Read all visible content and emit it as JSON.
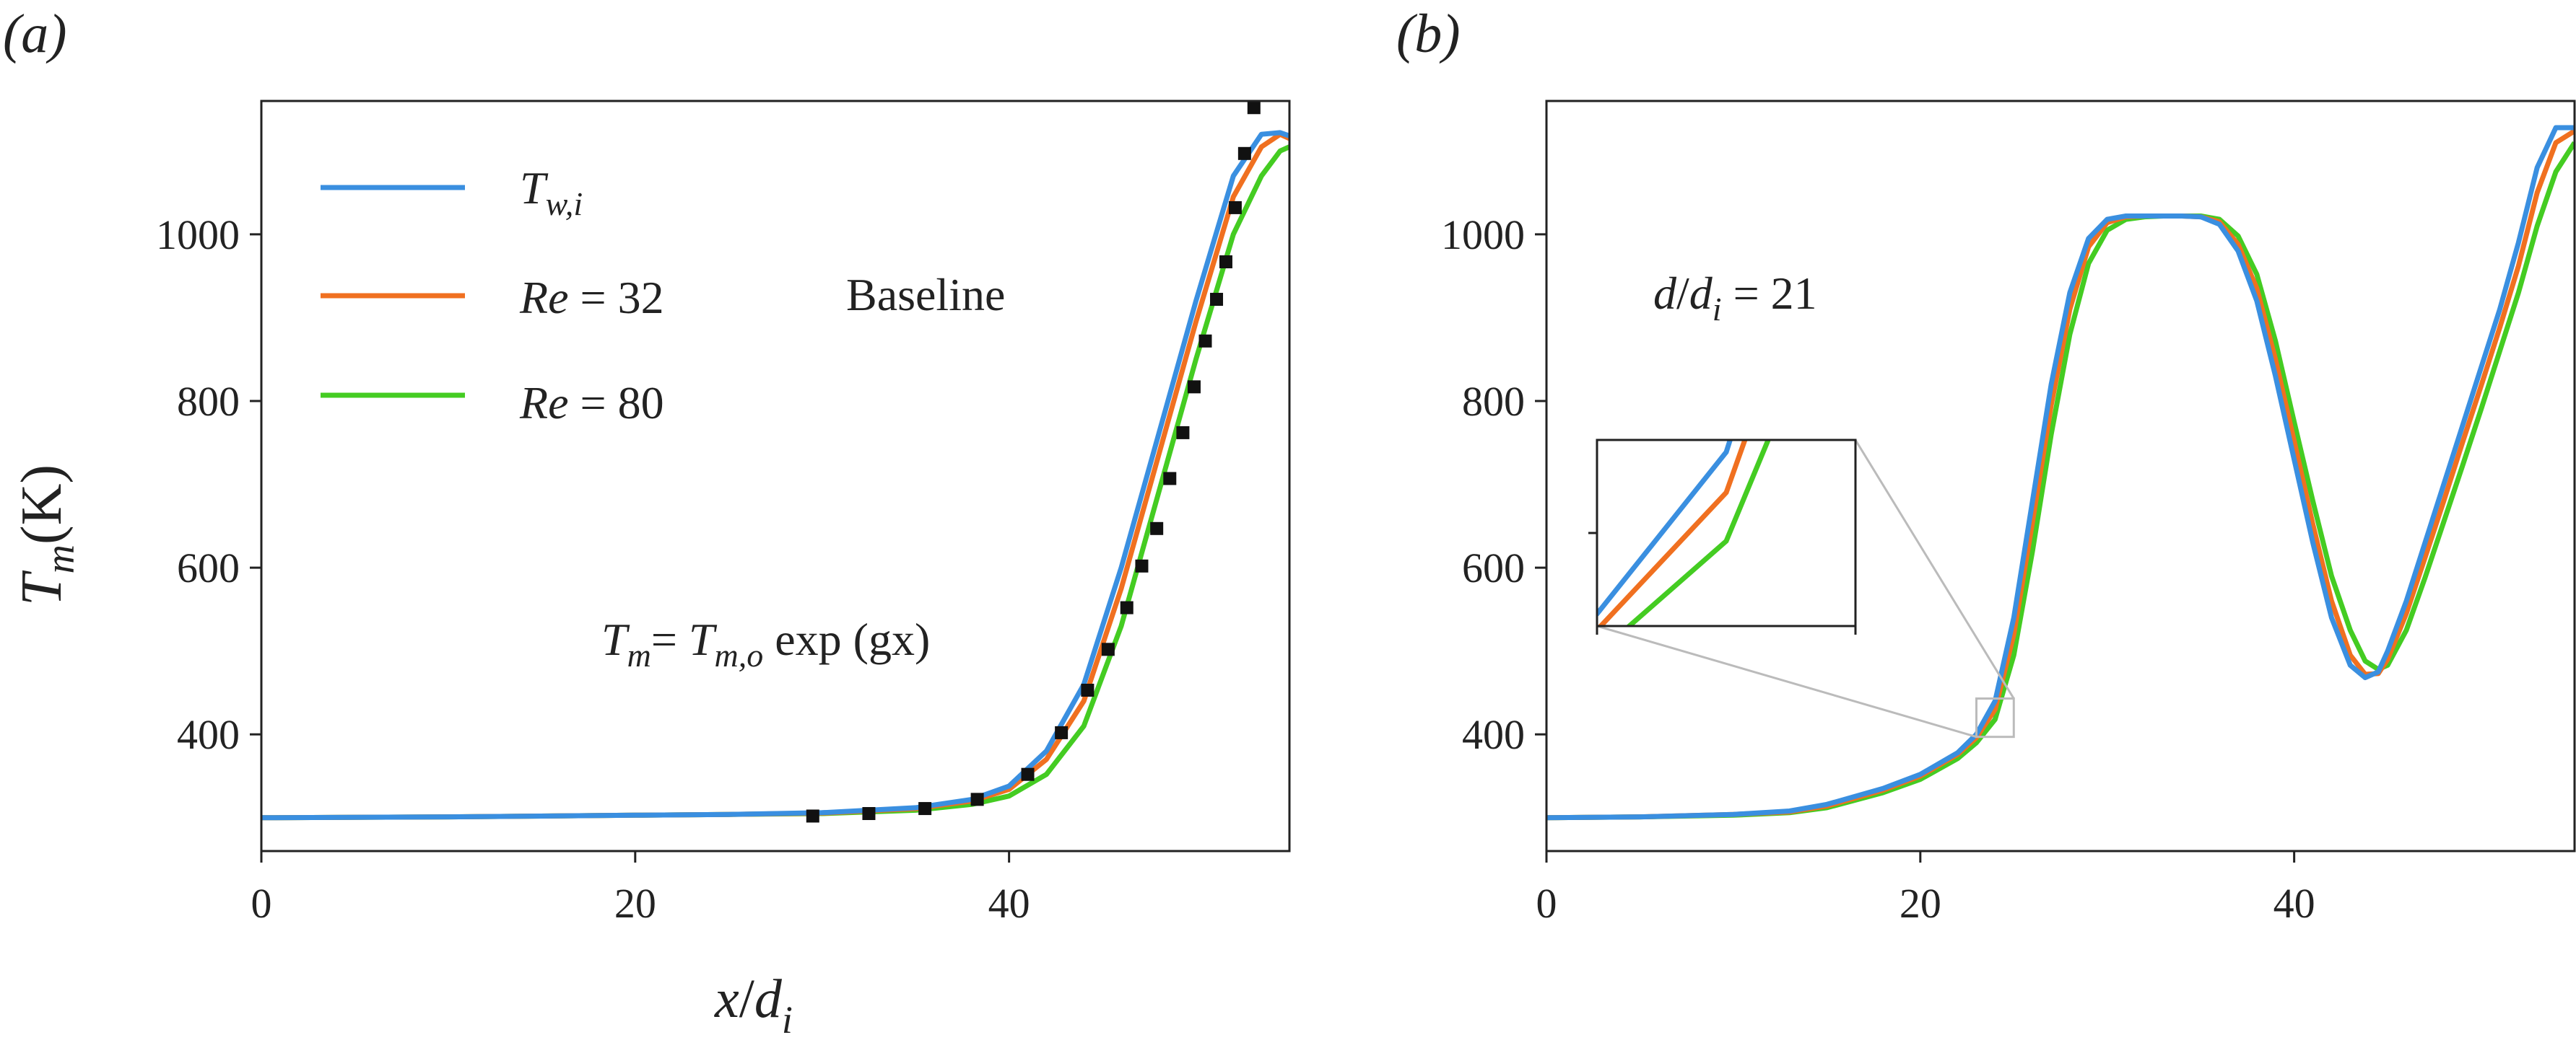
{
  "chart_data": [
    {
      "type": "line",
      "panel_label": "(a)",
      "title": "Baseline",
      "annotation": "T_m = T_m,o exp (gx)",
      "xlabel": "x/d_i",
      "ylabel": "T_m (K)",
      "xlim": [
        0,
        55
      ],
      "ylim": [
        260,
        1160
      ],
      "xticks": [
        0,
        20,
        40
      ],
      "yticks": [
        400,
        600,
        800,
        1000
      ],
      "legend_position": "top-left",
      "series": [
        {
          "name": "T_w,i",
          "color": "#3a8fe0",
          "x": [
            0,
            10,
            20,
            25,
            30,
            35,
            38,
            40,
            42,
            44,
            46,
            48,
            50,
            52,
            53.5,
            54.5,
            55
          ],
          "y": [
            300,
            301,
            303,
            304,
            306,
            312,
            322,
            338,
            380,
            460,
            600,
            760,
            920,
            1070,
            1120,
            1122,
            1118
          ]
        },
        {
          "name": "Re = 32",
          "color": "#f07020",
          "x": [
            0,
            10,
            20,
            25,
            30,
            35,
            38,
            40,
            42,
            44,
            46,
            48,
            50,
            52,
            53.5,
            54.5,
            55
          ],
          "y": [
            300,
            301,
            303,
            304,
            305.5,
            311,
            320,
            334,
            370,
            440,
            575,
            735,
            895,
            1045,
            1105,
            1120,
            1115
          ]
        },
        {
          "name": "Re = 80",
          "color": "#44cc22",
          "x": [
            0,
            10,
            20,
            25,
            30,
            35,
            38,
            40,
            42,
            44,
            46,
            48,
            50,
            52,
            53.5,
            54.5,
            55
          ],
          "y": [
            300,
            301,
            303,
            304,
            305,
            309,
            316,
            326,
            352,
            410,
            530,
            690,
            850,
            1000,
            1070,
            1100,
            1105
          ]
        },
        {
          "name": "T_m = T_m,o exp (gx)",
          "color": "#111111",
          "style": "dotted",
          "x": [
            29.5,
            32.5,
            35.5,
            38.3,
            41,
            42.8,
            44.2,
            45.3,
            46.3,
            47.1,
            47.9,
            48.6,
            49.3,
            49.9,
            50.5,
            51.1,
            51.6,
            52.1,
            52.6,
            53.1
          ],
          "y": [
            302,
            305,
            311,
            322,
            352,
            402,
            453,
            502,
            552,
            602,
            647,
            707,
            762,
            817,
            872,
            922,
            967,
            1032,
            1097,
            1152
          ]
        }
      ]
    },
    {
      "type": "line",
      "panel_label": "(b)",
      "annotation": "d/d_i = 21",
      "xlabel": "",
      "ylabel": "",
      "xlim": [
        0,
        55
      ],
      "ylim": [
        260,
        1160
      ],
      "xticks": [
        0,
        20,
        40
      ],
      "yticks": [
        400,
        600,
        800,
        1000
      ],
      "inset": {
        "x_range": [
          23,
          25
        ],
        "y_range": [
          397,
          443
        ]
      },
      "series": [
        {
          "name": "T_w,i",
          "color": "#3a8fe0",
          "x": [
            0,
            5,
            10,
            13,
            15,
            18,
            20,
            22,
            23,
            24,
            25,
            26,
            27,
            28,
            29,
            30,
            31,
            32,
            33,
            34,
            35,
            36,
            37,
            38,
            39,
            40,
            41,
            42,
            43,
            43.8,
            44.5,
            45,
            46,
            47,
            48,
            49,
            50,
            51,
            52,
            53,
            54,
            55
          ],
          "y": [
            300,
            301,
            304,
            308,
            316,
            335,
            352,
            378,
            400,
            440,
            540,
            680,
            820,
            930,
            995,
            1018,
            1022,
            1022,
            1022,
            1022,
            1021,
            1012,
            980,
            920,
            830,
            730,
            630,
            540,
            483,
            468,
            475,
            500,
            560,
            630,
            700,
            770,
            840,
            910,
            990,
            1080,
            1128,
            1128
          ]
        },
        {
          "name": "Re = 32",
          "color": "#f07020",
          "x": [
            0,
            5,
            10,
            13,
            15,
            18,
            20,
            22,
            23,
            24,
            25,
            26,
            27,
            28,
            29,
            30,
            31,
            32,
            33,
            34,
            35,
            36,
            37,
            38,
            39,
            40,
            41,
            42,
            43,
            43.8,
            44.5,
            45,
            46,
            47,
            48,
            49,
            50,
            51,
            52,
            53,
            54,
            55
          ],
          "y": [
            300,
            301,
            304,
            307,
            314,
            333,
            350,
            376,
            396,
            430,
            520,
            655,
            795,
            910,
            985,
            1014,
            1021,
            1022,
            1022,
            1022,
            1021,
            1015,
            988,
            935,
            850,
            752,
            652,
            560,
            495,
            472,
            473,
            490,
            545,
            612,
            680,
            750,
            818,
            888,
            962,
            1050,
            1110,
            1124
          ]
        },
        {
          "name": "Re = 80",
          "color": "#44cc22",
          "x": [
            0,
            5,
            10,
            13,
            15,
            18,
            20,
            22,
            23,
            24,
            25,
            26,
            27,
            28,
            29,
            30,
            31,
            32,
            33,
            34,
            35,
            36,
            37,
            38,
            39,
            40,
            41,
            42,
            43,
            43.8,
            44.5,
            45,
            46,
            47,
            48,
            49,
            50,
            51,
            52,
            53,
            54,
            55
          ],
          "y": [
            300,
            301,
            303,
            306,
            312,
            330,
            346,
            371,
            390,
            418,
            495,
            620,
            760,
            880,
            965,
            1005,
            1018,
            1021,
            1022,
            1022,
            1022,
            1018,
            998,
            952,
            872,
            775,
            680,
            590,
            525,
            488,
            478,
            483,
            525,
            588,
            655,
            722,
            790,
            860,
            930,
            1010,
            1075,
            1110
          ]
        }
      ]
    }
  ]
}
